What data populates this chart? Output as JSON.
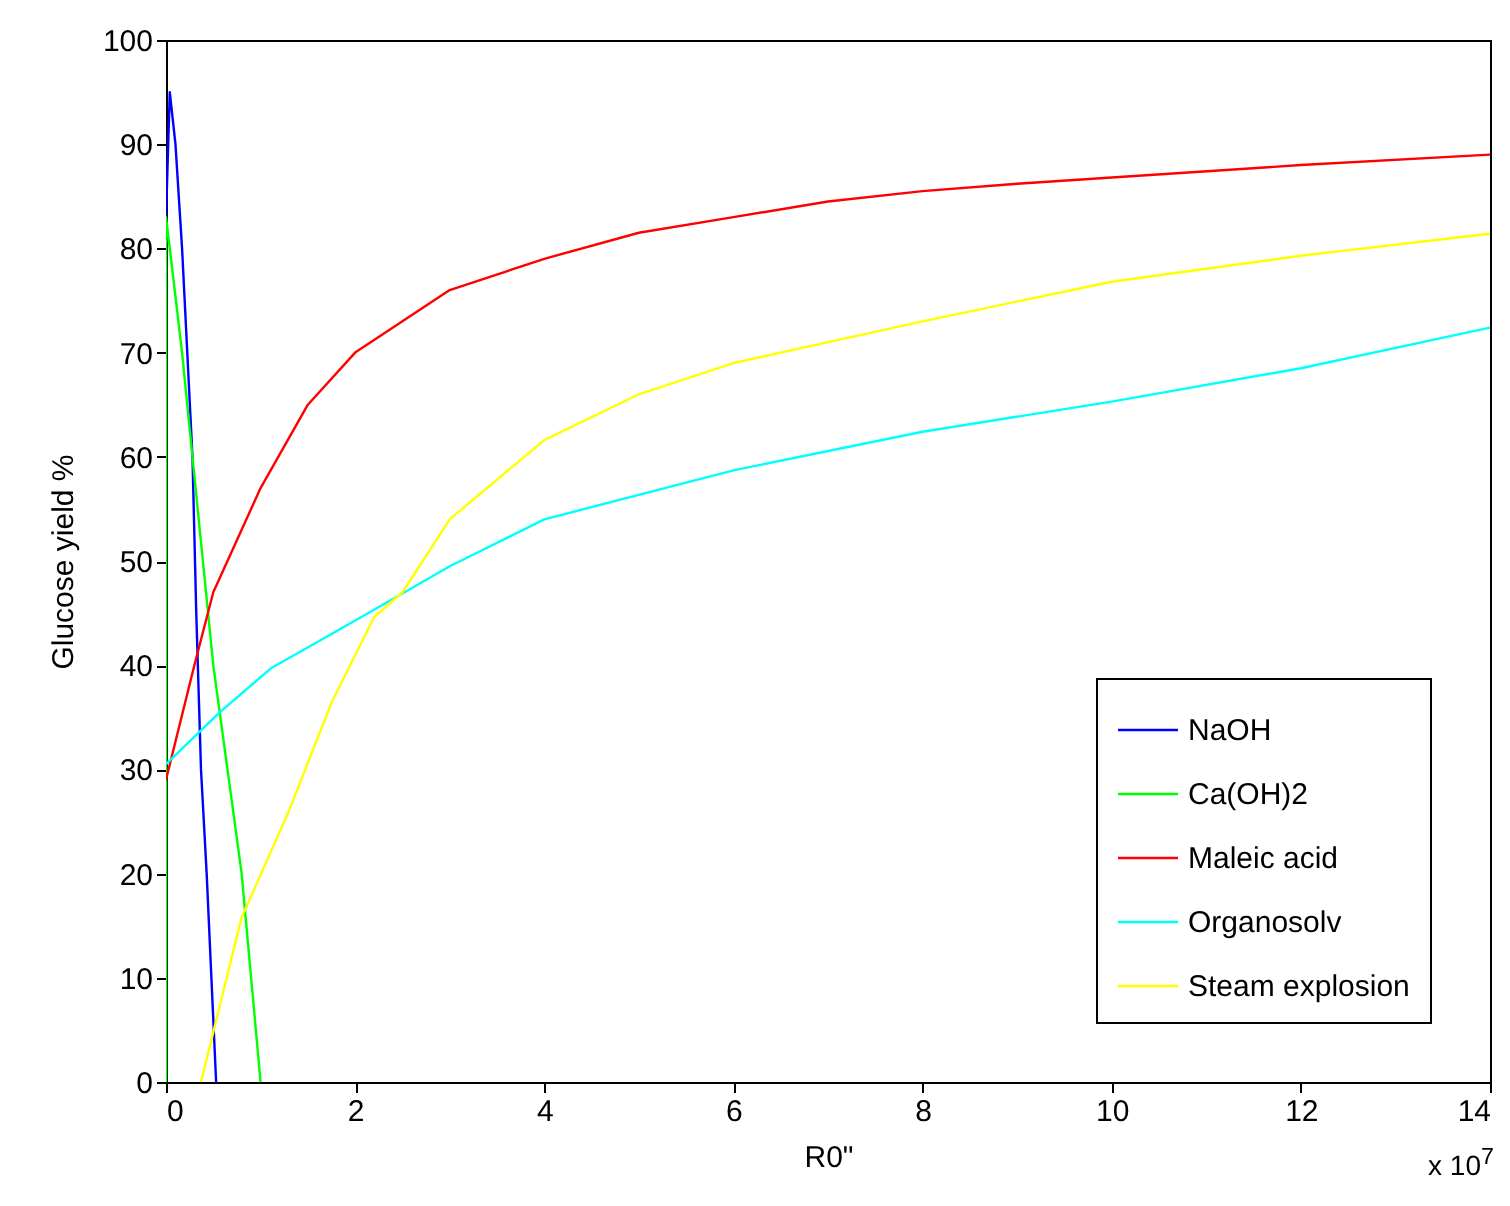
{
  "chart_data": {
    "type": "line",
    "xlabel": "R0\"",
    "ylabel": "Glucose yield %",
    "xlim": [
      0,
      14
    ],
    "ylim": [
      0,
      100
    ],
    "xticks": [
      0,
      2,
      4,
      6,
      8,
      10,
      12,
      14
    ],
    "yticks": [
      0,
      10,
      20,
      30,
      40,
      50,
      60,
      70,
      80,
      90,
      100
    ],
    "legend": "bottom right",
    "annotations": [
      "x 10$^{7}$"
    ],
    "series": [
      {
        "name": "NaOH",
        "color": "#0000ff",
        "x": [
          0,
          0.04,
          0.1,
          0.17,
          0.28,
          0.32,
          0.37,
          0.43,
          0.48,
          0.53
        ],
        "values": [
          83,
          95,
          90,
          80,
          60,
          45,
          30,
          20,
          10,
          0
        ]
      },
      {
        "name": "Ca(OH)2",
        "color": "#00ff00",
        "x": [
          0,
          0,
          0.04,
          0.17,
          0.28,
          0.39,
          0.5,
          0.65,
          0.8,
          0.9,
          1.0
        ],
        "values": [
          0,
          83,
          80,
          70,
          60,
          50,
          40,
          30,
          20,
          10,
          0
        ]
      },
      {
        "name": "Maleic acid",
        "color": "#ff0000",
        "x": [
          0,
          0.3,
          0.5,
          1,
          1.5,
          2,
          3,
          4,
          5,
          6,
          7,
          8,
          9,
          10,
          12,
          14
        ],
        "values": [
          29,
          40,
          47,
          57,
          65,
          70,
          76,
          79,
          81.5,
          83,
          84.5,
          85.5,
          86.2,
          86.8,
          88,
          89
        ]
      },
      {
        "name": "Organosolv",
        "color": "#00ffff",
        "x": [
          0,
          0.57,
          1.11,
          1.75,
          2.39,
          3,
          4,
          6,
          8,
          10,
          12,
          14
        ],
        "values": [
          30.5,
          35.5,
          39.7,
          43,
          46.3,
          49.5,
          54,
          58.7,
          62.4,
          65.3,
          68.5,
          72.4
        ]
      },
      {
        "name": "Steam explosion",
        "color": "#ffff00",
        "x": [
          0.37,
          0.8,
          1.3,
          1.75,
          2.2,
          2.5,
          3,
          4,
          5,
          6,
          8,
          10,
          12,
          14
        ],
        "values": [
          0,
          15.8,
          26,
          36.4,
          44.6,
          47,
          54,
          61.6,
          66,
          69,
          73,
          76.8,
          79.3,
          81.4
        ]
      }
    ]
  }
}
